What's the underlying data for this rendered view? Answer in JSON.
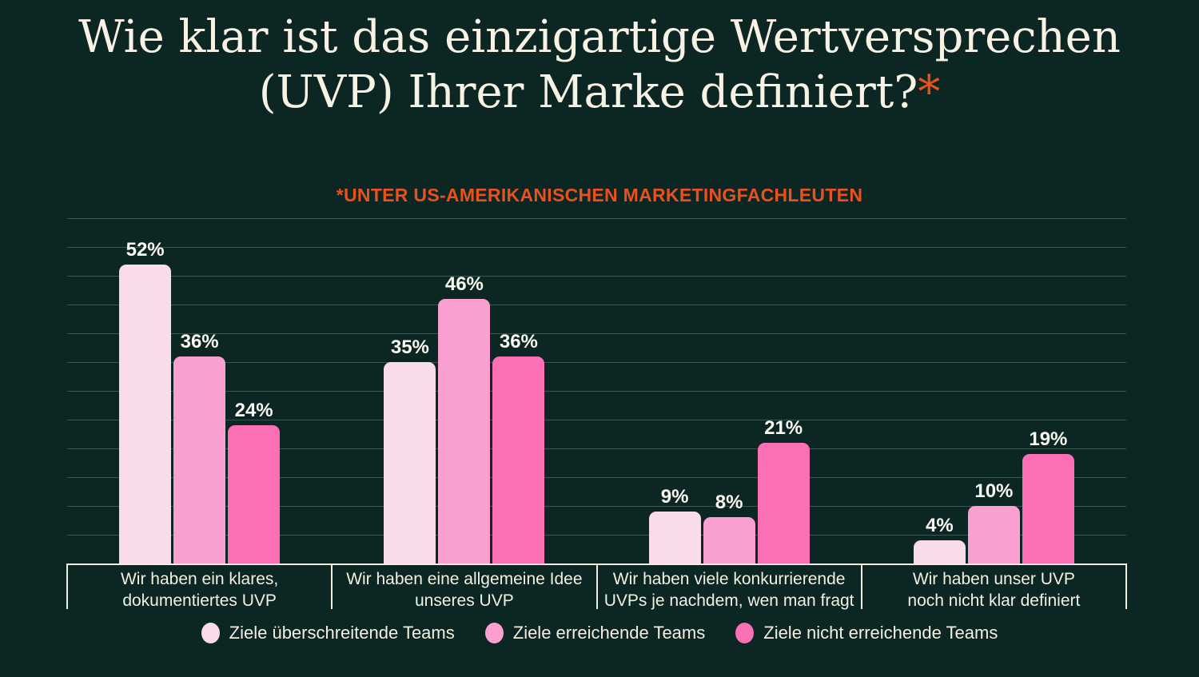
{
  "title": {
    "line1": "Wie klar ist das einzigartige Wertversprechen",
    "line2": "(UVP) Ihrer Marke definiert?",
    "asterisk": "*"
  },
  "subtitle": "*UNTER US-AMERIKANISCHEN MARKETINGFACHLEUTEN",
  "colors": {
    "background": "#0C2723",
    "title_text": "#F7F2E4",
    "accent_orange": "#E9511D",
    "value_label": "#FAF8F0",
    "category_label": "#F3EFE2",
    "legend_label": "#F3EFE2",
    "grid_line": "rgba(244,240,228,0.22)",
    "axis_box_border": "#F2EEE0"
  },
  "chart_data": {
    "type": "bar",
    "categories": [
      "Wir haben ein klares,\ndokumentiertes UVP",
      "Wir haben eine allgemeine Idee\nunseres UVP",
      "Wir haben viele konkurrierende\nUVPs je nachdem, wen man fragt",
      "Wir haben unser UVP\nnoch nicht klar definiert"
    ],
    "series": [
      {
        "name": "Ziele überschreitende Teams",
        "color": "#F8DCEA",
        "values": [
          52,
          35,
          9,
          4
        ]
      },
      {
        "name": "Ziele erreichende Teams",
        "color": "#F9A0D0",
        "values": [
          36,
          46,
          8,
          10
        ]
      },
      {
        "name": "Ziele nicht erreichende Teams",
        "color": "#FB6FB5",
        "values": [
          24,
          36,
          21,
          19
        ]
      }
    ],
    "value_suffix": "%",
    "title": "Wie klar ist das einzigartige Wertversprechen (UVP) Ihrer Marke definiert?",
    "xlabel": "",
    "ylabel": "",
    "ylim": [
      0,
      60
    ],
    "grid_step": 5,
    "grid": true,
    "legend_position": "bottom"
  }
}
